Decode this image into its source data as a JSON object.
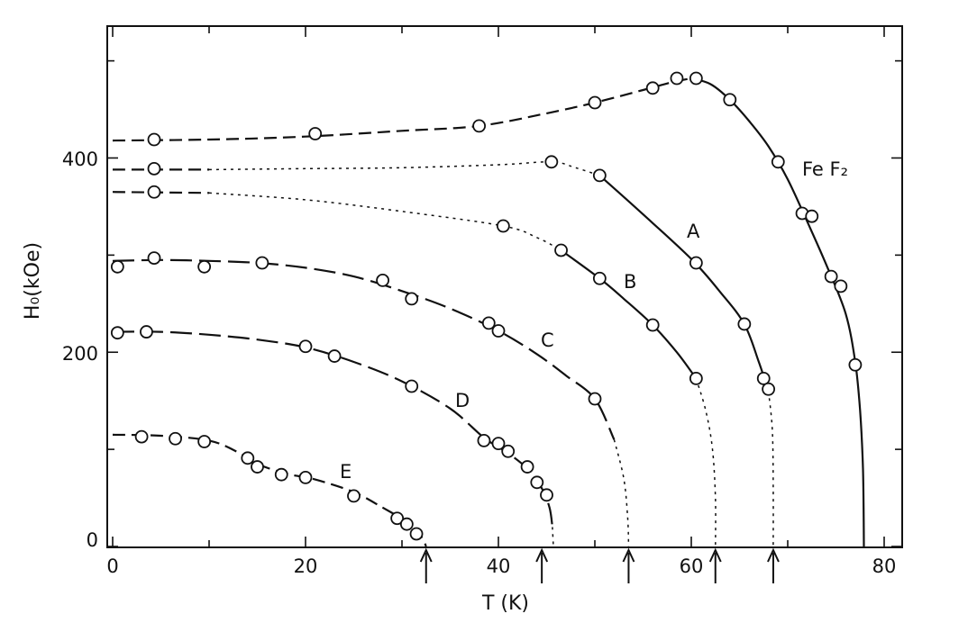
{
  "chart_data": {
    "type": "scatter",
    "title": "",
    "xlabel": "T (K)",
    "ylabel": "H₀(kOe)",
    "xlim": [
      0,
      80
    ],
    "ylim": [
      0,
      520
    ],
    "x_ticks": [
      "0",
      "20",
      "40",
      "60",
      "80"
    ],
    "y_ticks": [
      "0",
      "200",
      "400"
    ],
    "grid": false,
    "annotations": [
      "Fe F₂",
      "A",
      "B",
      "C",
      "D",
      "E"
    ],
    "neel_arrows_T": [
      32.5,
      44.5,
      53.5,
      62.5,
      68.5
    ],
    "series": [
      {
        "name": "Fe F₂",
        "points": [
          [
            4.3,
            419
          ],
          [
            21,
            425
          ],
          [
            38,
            433
          ],
          [
            50,
            457
          ],
          [
            56,
            472
          ],
          [
            58.5,
            482
          ],
          [
            60.5,
            482
          ],
          [
            64,
            460
          ],
          [
            69,
            396
          ],
          [
            71.5,
            343
          ],
          [
            72.5,
            340
          ],
          [
            74.5,
            278
          ],
          [
            75.5,
            268
          ],
          [
            77,
            187
          ]
        ],
        "curve": [
          [
            0,
            418
          ],
          [
            10,
            419
          ],
          [
            20,
            422
          ],
          [
            30,
            428
          ],
          [
            38,
            433
          ],
          [
            45,
            446
          ],
          [
            50,
            457
          ],
          [
            55,
            470
          ],
          [
            58,
            478
          ],
          [
            60,
            482
          ],
          [
            62,
            476
          ],
          [
            64,
            460
          ],
          [
            66,
            438
          ],
          [
            68,
            412
          ],
          [
            70,
            378
          ],
          [
            72,
            335
          ],
          [
            74,
            290
          ],
          [
            76,
            240
          ],
          [
            77,
            190
          ],
          [
            77.5,
            140
          ],
          [
            77.8,
            80
          ],
          [
            77.9,
            0
          ]
        ],
        "curve_style": [
          "dashed",
          "solid"
        ],
        "curve_break_T": 60
      },
      {
        "name": "A",
        "points": [
          [
            4.3,
            389
          ],
          [
            45.5,
            396
          ],
          [
            50.5,
            382
          ],
          [
            60.5,
            292
          ],
          [
            65.5,
            229
          ],
          [
            67.5,
            173
          ],
          [
            68,
            162
          ]
        ],
        "curve": [
          [
            0,
            388
          ],
          [
            5,
            388
          ],
          [
            10,
            388
          ],
          [
            20,
            389
          ],
          [
            30,
            390
          ],
          [
            40,
            393
          ],
          [
            45.5,
            396
          ],
          [
            48,
            390
          ],
          [
            50.5,
            382
          ],
          [
            55,
            342
          ],
          [
            60,
            296
          ],
          [
            63,
            262
          ],
          [
            65.5,
            229
          ],
          [
            67,
            190
          ],
          [
            68,
            160
          ],
          [
            68.4,
            120
          ],
          [
            68.5,
            60
          ],
          [
            68.5,
            0
          ]
        ],
        "curve_style": [
          "dashed",
          "dotted",
          "solid",
          "dotted"
        ],
        "curve_break_T": [
          10,
          50.5,
          68
        ]
      },
      {
        "name": "B",
        "points": [
          [
            4.3,
            365
          ],
          [
            40.5,
            330
          ],
          [
            46.5,
            305
          ],
          [
            50.5,
            276
          ],
          [
            56,
            228
          ],
          [
            60.5,
            173
          ]
        ],
        "curve": [
          [
            0,
            365
          ],
          [
            10,
            364
          ],
          [
            20,
            357
          ],
          [
            30,
            345
          ],
          [
            40.5,
            330
          ],
          [
            44,
            318
          ],
          [
            46.5,
            305
          ],
          [
            50.5,
            276
          ],
          [
            53,
            255
          ],
          [
            56,
            228
          ],
          [
            58.5,
            200
          ],
          [
            60.5,
            173
          ],
          [
            61.5,
            140
          ],
          [
            62.2,
            100
          ],
          [
            62.5,
            50
          ],
          [
            62.5,
            0
          ]
        ],
        "curve_style": [
          "dashed",
          "dotted",
          "solid",
          "dotted"
        ],
        "curve_break_T": [
          10,
          46.5,
          60.5
        ]
      },
      {
        "name": "C",
        "points": [
          [
            0.5,
            288
          ],
          [
            4.3,
            297
          ],
          [
            9.5,
            288
          ],
          [
            15.5,
            292
          ],
          [
            28,
            274
          ],
          [
            31,
            255
          ],
          [
            39,
            230
          ],
          [
            40,
            222
          ],
          [
            50,
            152
          ]
        ],
        "curve": [
          [
            0,
            294
          ],
          [
            5,
            295
          ],
          [
            10,
            294
          ],
          [
            15,
            292
          ],
          [
            20,
            287
          ],
          [
            25,
            278
          ],
          [
            30,
            263
          ],
          [
            35,
            245
          ],
          [
            40,
            222
          ],
          [
            44,
            198
          ],
          [
            47,
            176
          ],
          [
            50,
            152
          ],
          [
            52,
            110
          ],
          [
            53,
            70
          ],
          [
            53.4,
            30
          ],
          [
            53.5,
            0
          ]
        ],
        "curve_style": [
          "long-dashed",
          "dotted"
        ],
        "curve_break_T": 52
      },
      {
        "name": "D",
        "points": [
          [
            0.5,
            220
          ],
          [
            3.5,
            221
          ],
          [
            20,
            206
          ],
          [
            23,
            196
          ],
          [
            31,
            165
          ],
          [
            38.5,
            109
          ],
          [
            40,
            106
          ],
          [
            41,
            98
          ],
          [
            43,
            82
          ],
          [
            44,
            66
          ],
          [
            45,
            53
          ]
        ],
        "curve": [
          [
            0,
            221
          ],
          [
            5,
            221
          ],
          [
            10,
            218
          ],
          [
            15,
            213
          ],
          [
            20,
            205
          ],
          [
            25,
            190
          ],
          [
            30,
            170
          ],
          [
            35,
            142
          ],
          [
            38.5,
            112
          ],
          [
            41,
            96
          ],
          [
            43,
            80
          ],
          [
            44.5,
            60
          ],
          [
            45.3,
            40
          ],
          [
            45.6,
            20
          ],
          [
            45.7,
            0
          ]
        ],
        "curve_style": [
          "long-dashed",
          "dotted"
        ],
        "curve_break_T": 45.5
      },
      {
        "name": "E",
        "points": [
          [
            3,
            113
          ],
          [
            6.5,
            111
          ],
          [
            9.5,
            108
          ],
          [
            14,
            91
          ],
          [
            15,
            82
          ],
          [
            17.5,
            74
          ],
          [
            20,
            71
          ],
          [
            25,
            52
          ],
          [
            29.5,
            29
          ],
          [
            30.5,
            23
          ],
          [
            31.5,
            13
          ]
        ],
        "curve": [
          [
            0,
            115
          ],
          [
            5,
            114
          ],
          [
            10,
            109
          ],
          [
            13,
            97
          ],
          [
            15,
            85
          ],
          [
            18,
            75
          ],
          [
            21,
            69
          ],
          [
            25,
            56
          ],
          [
            28,
            40
          ],
          [
            30.5,
            25
          ],
          [
            32,
            10
          ],
          [
            32.5,
            0
          ]
        ],
        "curve_style": [
          "dashed"
        ]
      }
    ]
  }
}
